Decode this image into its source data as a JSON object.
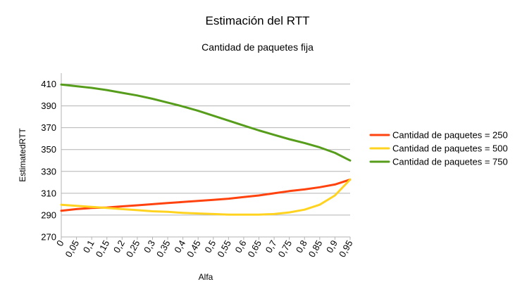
{
  "chart_data": {
    "type": "line",
    "title": "Estimación del RTT",
    "subtitle": "Cantidad de paquetes fija",
    "xlabel": "Alfa",
    "ylabel": "EstimatedRTT",
    "x": [
      "0",
      "0,05",
      "0,1",
      "0,15",
      "0,2",
      "0,25",
      "0,3",
      "0,35",
      "0,4",
      "0,45",
      "0,5",
      "0,55",
      "0,6",
      "0,65",
      "0,7",
      "0,75",
      "0,8",
      "0,85",
      "0,9",
      "0,95"
    ],
    "ylim": [
      270,
      420
    ],
    "yticks": [
      270,
      290,
      310,
      330,
      350,
      370,
      390,
      410
    ],
    "grid": true,
    "legend_position": "right",
    "series": [
      {
        "name": "Cantidad de paquetes = 250",
        "color": "#ff420e",
        "values": [
          294,
          295.5,
          296.5,
          297,
          298,
          299,
          300,
          301,
          302,
          303,
          304,
          305,
          306.5,
          308,
          310,
          312,
          313.5,
          315.5,
          318,
          322.5
        ]
      },
      {
        "name": "Cantidad de paquetes = 500",
        "color": "#ffd320",
        "values": [
          299.5,
          298.5,
          297.5,
          296.5,
          295.5,
          294.5,
          293.5,
          293,
          292,
          291.5,
          291,
          290.5,
          290.5,
          290.5,
          291,
          292.5,
          295,
          299.5,
          308,
          322.5
        ]
      },
      {
        "name": "Cantidad de paquetes = 750",
        "color": "#579d1c",
        "values": [
          409.5,
          408,
          406.5,
          404.5,
          402,
          399.5,
          396.5,
          393,
          389.5,
          385.5,
          381,
          376.5,
          372,
          367.5,
          363.5,
          359.5,
          356,
          352,
          347,
          340
        ]
      }
    ]
  }
}
